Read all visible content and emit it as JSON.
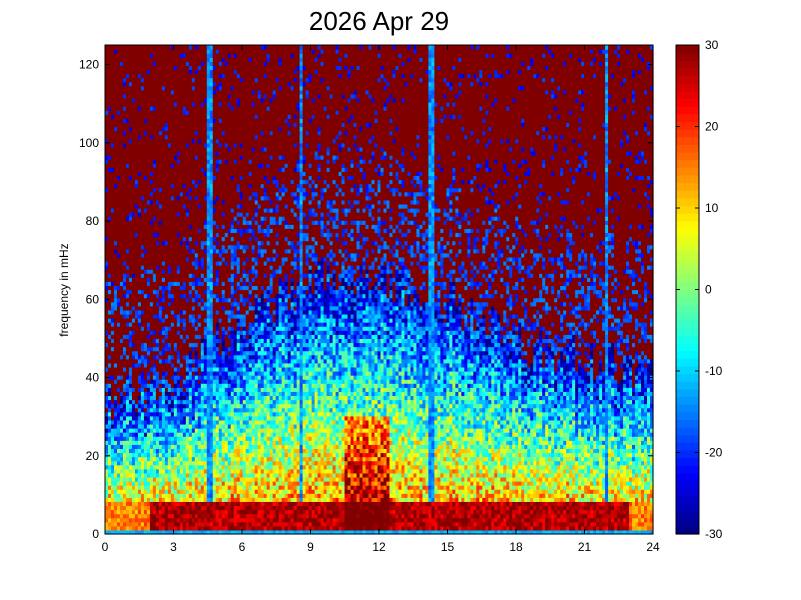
{
  "chart_data": {
    "type": "heatmap",
    "title": "2026 Apr 29",
    "xlabel": "",
    "ylabel": "frequency in mHz",
    "xlim": [
      0,
      24
    ],
    "ylim": [
      0,
      125
    ],
    "xticks": [
      0,
      3,
      6,
      9,
      12,
      15,
      18,
      21,
      24
    ],
    "yticks": [
      0,
      20,
      40,
      60,
      80,
      100,
      120
    ],
    "colorbar": {
      "colormap": "jet",
      "clim": [
        -30,
        30
      ],
      "ticks": [
        -30,
        -20,
        -10,
        0,
        10,
        20,
        30
      ]
    },
    "features": {
      "baseline_band_value": -12,
      "strong_band_mHz": [
        1.5,
        8
      ],
      "peak_activity_hours": [
        10.5,
        12.5
      ],
      "broadband_streaks_hours": [
        4.6,
        8.6,
        14.3,
        22.0
      ],
      "background_value": 30,
      "activity_envelope": [
        {
          "hour": 0,
          "top_mHz": 35
        },
        {
          "hour": 3,
          "top_mHz": 38
        },
        {
          "hour": 6,
          "top_mHz": 55
        },
        {
          "hour": 9,
          "top_mHz": 65
        },
        {
          "hour": 12,
          "top_mHz": 65
        },
        {
          "hour": 15,
          "top_mHz": 60
        },
        {
          "hour": 18,
          "top_mHz": 50
        },
        {
          "hour": 21,
          "top_mHz": 45
        },
        {
          "hour": 24,
          "top_mHz": 40
        }
      ]
    },
    "grid": false,
    "legend": "none"
  }
}
